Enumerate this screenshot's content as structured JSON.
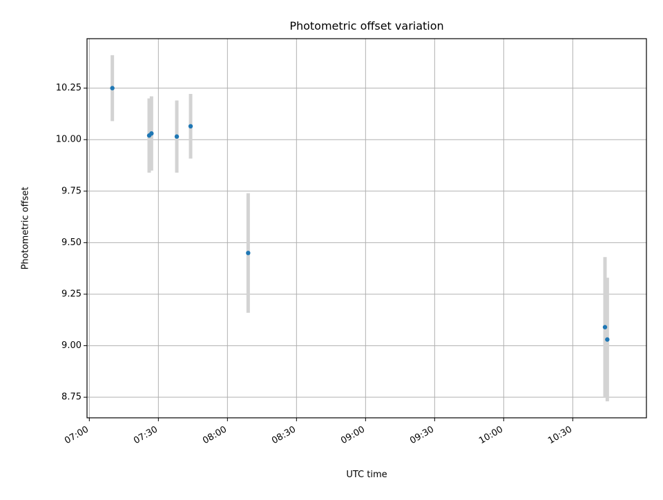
{
  "chart_data": {
    "type": "scatter",
    "title": "Photometric offset variation",
    "xlabel": "UTC time",
    "ylabel": "Photometric offset",
    "x_axis": {
      "unit": "time",
      "range": [
        "06:59",
        "11:02"
      ],
      "tick_values": [
        "07:00",
        "07:30",
        "08:00",
        "08:30",
        "09:00",
        "09:30",
        "10:00",
        "10:30"
      ],
      "tick_labels": [
        "07:00",
        "07:30",
        "08:00",
        "08:30",
        "09:00",
        "09:30",
        "10:00",
        "10:30"
      ]
    },
    "y_axis": {
      "range": [
        8.65,
        10.49
      ],
      "ticks": [
        8.75,
        9.0,
        9.25,
        9.5,
        9.75,
        10.0,
        10.25
      ],
      "tick_labels": [
        "8.75",
        "9.00",
        "9.25",
        "9.50",
        "9.75",
        "10.00",
        "10.25"
      ]
    },
    "grid": true,
    "marker_color": "#1f77b4",
    "errorbar_color": "#d3d3d3",
    "points": [
      {
        "time": "07:10",
        "y": 10.25,
        "yerr": 0.16
      },
      {
        "time": "07:26",
        "y": 10.02,
        "yerr": 0.18
      },
      {
        "time": "07:27",
        "y": 10.03,
        "yerr": 0.18
      },
      {
        "time": "07:38",
        "y": 10.015,
        "yerr": 0.175
      },
      {
        "time": "07:44",
        "y": 10.065,
        "yerr": 0.157
      },
      {
        "time": "08:09",
        "y": 9.45,
        "yerr": 0.29
      },
      {
        "time": "10:44",
        "y": 9.09,
        "yerr": 0.34
      },
      {
        "time": "10:45",
        "y": 9.03,
        "yerr": 0.3
      }
    ]
  }
}
